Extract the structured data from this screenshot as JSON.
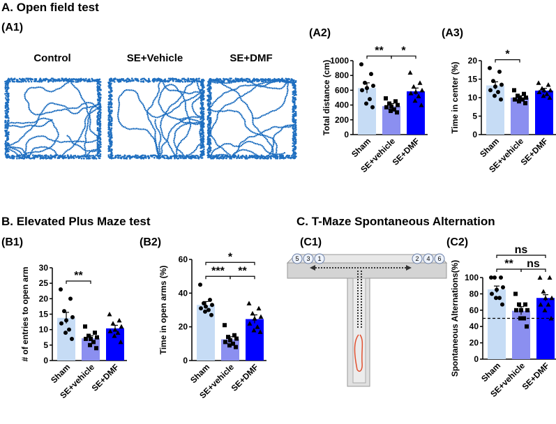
{
  "sections": {
    "a": "A. Open field test",
    "b": "B. Elevated Plus Maze test",
    "c": "C. T-Maze Spontaneous Alternation"
  },
  "panels": {
    "a1": "(A1)",
    "a2": "(A2)",
    "a3": "(A3)",
    "b1": "(B1)",
    "b2": "(B2)",
    "c1": "(C1)",
    "c2": "(C2)"
  },
  "tracks": [
    "Control",
    "SE+Vehicle",
    "SE+DMF"
  ],
  "diagram": {
    "left_arms": [
      "5",
      "3",
      "1"
    ],
    "right_arms": [
      "2",
      "4",
      "6"
    ]
  },
  "chart_data": [
    {
      "type": "bar",
      "ylabel": "Total distance (cm)",
      "ylim": [
        0,
        1000
      ],
      "yticks": [
        0,
        200,
        400,
        600,
        800,
        1000
      ],
      "series": [
        {
          "name": "Sham",
          "color": "#c6dcf5",
          "marker": "circle",
          "value": 630,
          "error": 70,
          "points": [
            950,
            820,
            700,
            660,
            630,
            600,
            480,
            420,
            370
          ]
        },
        {
          "name": "SE+vehicle",
          "color": "#8b8ff0",
          "marker": "square",
          "value": 385,
          "error": 35,
          "points": [
            490,
            450,
            420,
            400,
            380,
            370,
            340,
            320,
            300
          ]
        },
        {
          "name": "SE+DMF",
          "color": "#0000ff",
          "marker": "triangle",
          "value": 585,
          "error": 45,
          "points": [
            840,
            700,
            650,
            600,
            580,
            560,
            520,
            460,
            400
          ]
        }
      ],
      "brackets": [
        {
          "label": "**",
          "between": [
            "Sham",
            "SE+vehicle"
          ]
        },
        {
          "label": "*",
          "between": [
            "SE+vehicle",
            "SE+DMF"
          ]
        }
      ]
    },
    {
      "type": "bar",
      "ylabel": "Time in center (%)",
      "ylim": [
        0,
        20
      ],
      "yticks": [
        0,
        5,
        10,
        15,
        20
      ],
      "series": [
        {
          "name": "Sham",
          "color": "#c6dcf5",
          "marker": "circle",
          "value": 13.3,
          "error": 1,
          "points": [
            18,
            17,
            14.5,
            13.5,
            13,
            12,
            11.5,
            10.5,
            9.5
          ]
        },
        {
          "name": "SE+vehicle",
          "color": "#8b8ff0",
          "marker": "square",
          "value": 10,
          "error": 0.5,
          "points": [
            12,
            11,
            10.5,
            10,
            10,
            9.5,
            9.5,
            9,
            8.5
          ]
        },
        {
          "name": "SE+DMF",
          "color": "#0000ff",
          "marker": "triangle",
          "value": 11.9,
          "error": 0.6,
          "points": [
            14,
            13.5,
            12.5,
            12,
            12,
            11.5,
            11,
            10.5,
            10
          ]
        }
      ],
      "brackets": [
        {
          "label": "*",
          "between": [
            "Sham",
            "SE+vehicle"
          ]
        }
      ]
    },
    {
      "type": "bar",
      "ylabel": "# of entries to open arm",
      "ylim": [
        0,
        30
      ],
      "yticks": [
        0,
        5,
        10,
        15,
        20,
        25,
        30
      ],
      "series": [
        {
          "name": "Sham",
          "color": "#c6dcf5",
          "marker": "circle",
          "value": 13.8,
          "error": 1.8,
          "points": [
            23,
            20,
            16,
            14,
            13,
            12,
            10,
            9,
            7
          ]
        },
        {
          "name": "SE+vehicle",
          "color": "#8b8ff0",
          "marker": "square",
          "value": 7.2,
          "error": 0.8,
          "points": [
            11,
            9,
            8,
            7.5,
            7,
            7,
            6,
            5,
            4
          ]
        },
        {
          "name": "SE+DMF",
          "color": "#0000ff",
          "marker": "triangle",
          "value": 10.4,
          "error": 1,
          "points": [
            15,
            13,
            12,
            11,
            10,
            9.5,
            9,
            8,
            6
          ]
        }
      ],
      "brackets": [
        {
          "label": "**",
          "between": [
            "Sham",
            "SE+vehicle"
          ]
        }
      ]
    },
    {
      "type": "bar",
      "ylabel": "Time in open arms (%)",
      "ylim": [
        0,
        60
      ],
      "yticks": [
        0,
        20,
        40,
        60
      ],
      "series": [
        {
          "name": "Sham",
          "color": "#c6dcf5",
          "marker": "circle",
          "value": 33,
          "error": 2,
          "points": [
            45,
            36,
            34,
            33,
            32,
            31,
            30,
            29,
            27
          ]
        },
        {
          "name": "SE+vehicle",
          "color": "#8b8ff0",
          "marker": "square",
          "value": 12.6,
          "error": 1.5,
          "points": [
            21,
            15,
            14,
            13,
            12,
            11,
            10,
            9,
            8
          ]
        },
        {
          "name": "SE+DMF",
          "color": "#0000ff",
          "marker": "triangle",
          "value": 24.6,
          "error": 2.5,
          "points": [
            34,
            31,
            28,
            26,
            25,
            22,
            20,
            18,
            17
          ]
        }
      ],
      "brackets": [
        {
          "label": "***",
          "between": [
            "Sham",
            "SE+vehicle"
          ]
        },
        {
          "label": "**",
          "between": [
            "SE+vehicle",
            "SE+DMF"
          ]
        },
        {
          "label": "*",
          "between": [
            "Sham",
            "SE+DMF"
          ]
        }
      ]
    },
    {
      "type": "bar",
      "ylabel": "Spontaneous Alternations(%)",
      "ylim": [
        0,
        100
      ],
      "yticks": [
        0,
        20,
        40,
        60,
        80,
        100
      ],
      "reference_line": 50,
      "series": [
        {
          "name": "Sham",
          "color": "#c6dcf5",
          "marker": "circle",
          "value": 85.6,
          "error": 4,
          "points": [
            100,
            100,
            100,
            88,
            85,
            80,
            75,
            75,
            67
          ]
        },
        {
          "name": "SE+vehicle",
          "color": "#8b8ff0",
          "marker": "square",
          "value": 59.3,
          "error": 5,
          "points": [
            80,
            67,
            67,
            60,
            60,
            60,
            50,
            50,
            40
          ]
        },
        {
          "name": "SE+DMF",
          "color": "#0000ff",
          "marker": "triangle",
          "value": 75,
          "error": 4,
          "points": [
            100,
            100,
            83,
            75,
            75,
            67,
            67,
            60,
            50
          ]
        }
      ],
      "brackets": [
        {
          "label": "**",
          "between": [
            "Sham",
            "SE+vehicle"
          ]
        },
        {
          "label": "ns",
          "between": [
            "SE+vehicle",
            "SE+DMF"
          ]
        },
        {
          "label": "ns",
          "between": [
            "Sham",
            "SE+DMF"
          ]
        }
      ]
    }
  ]
}
